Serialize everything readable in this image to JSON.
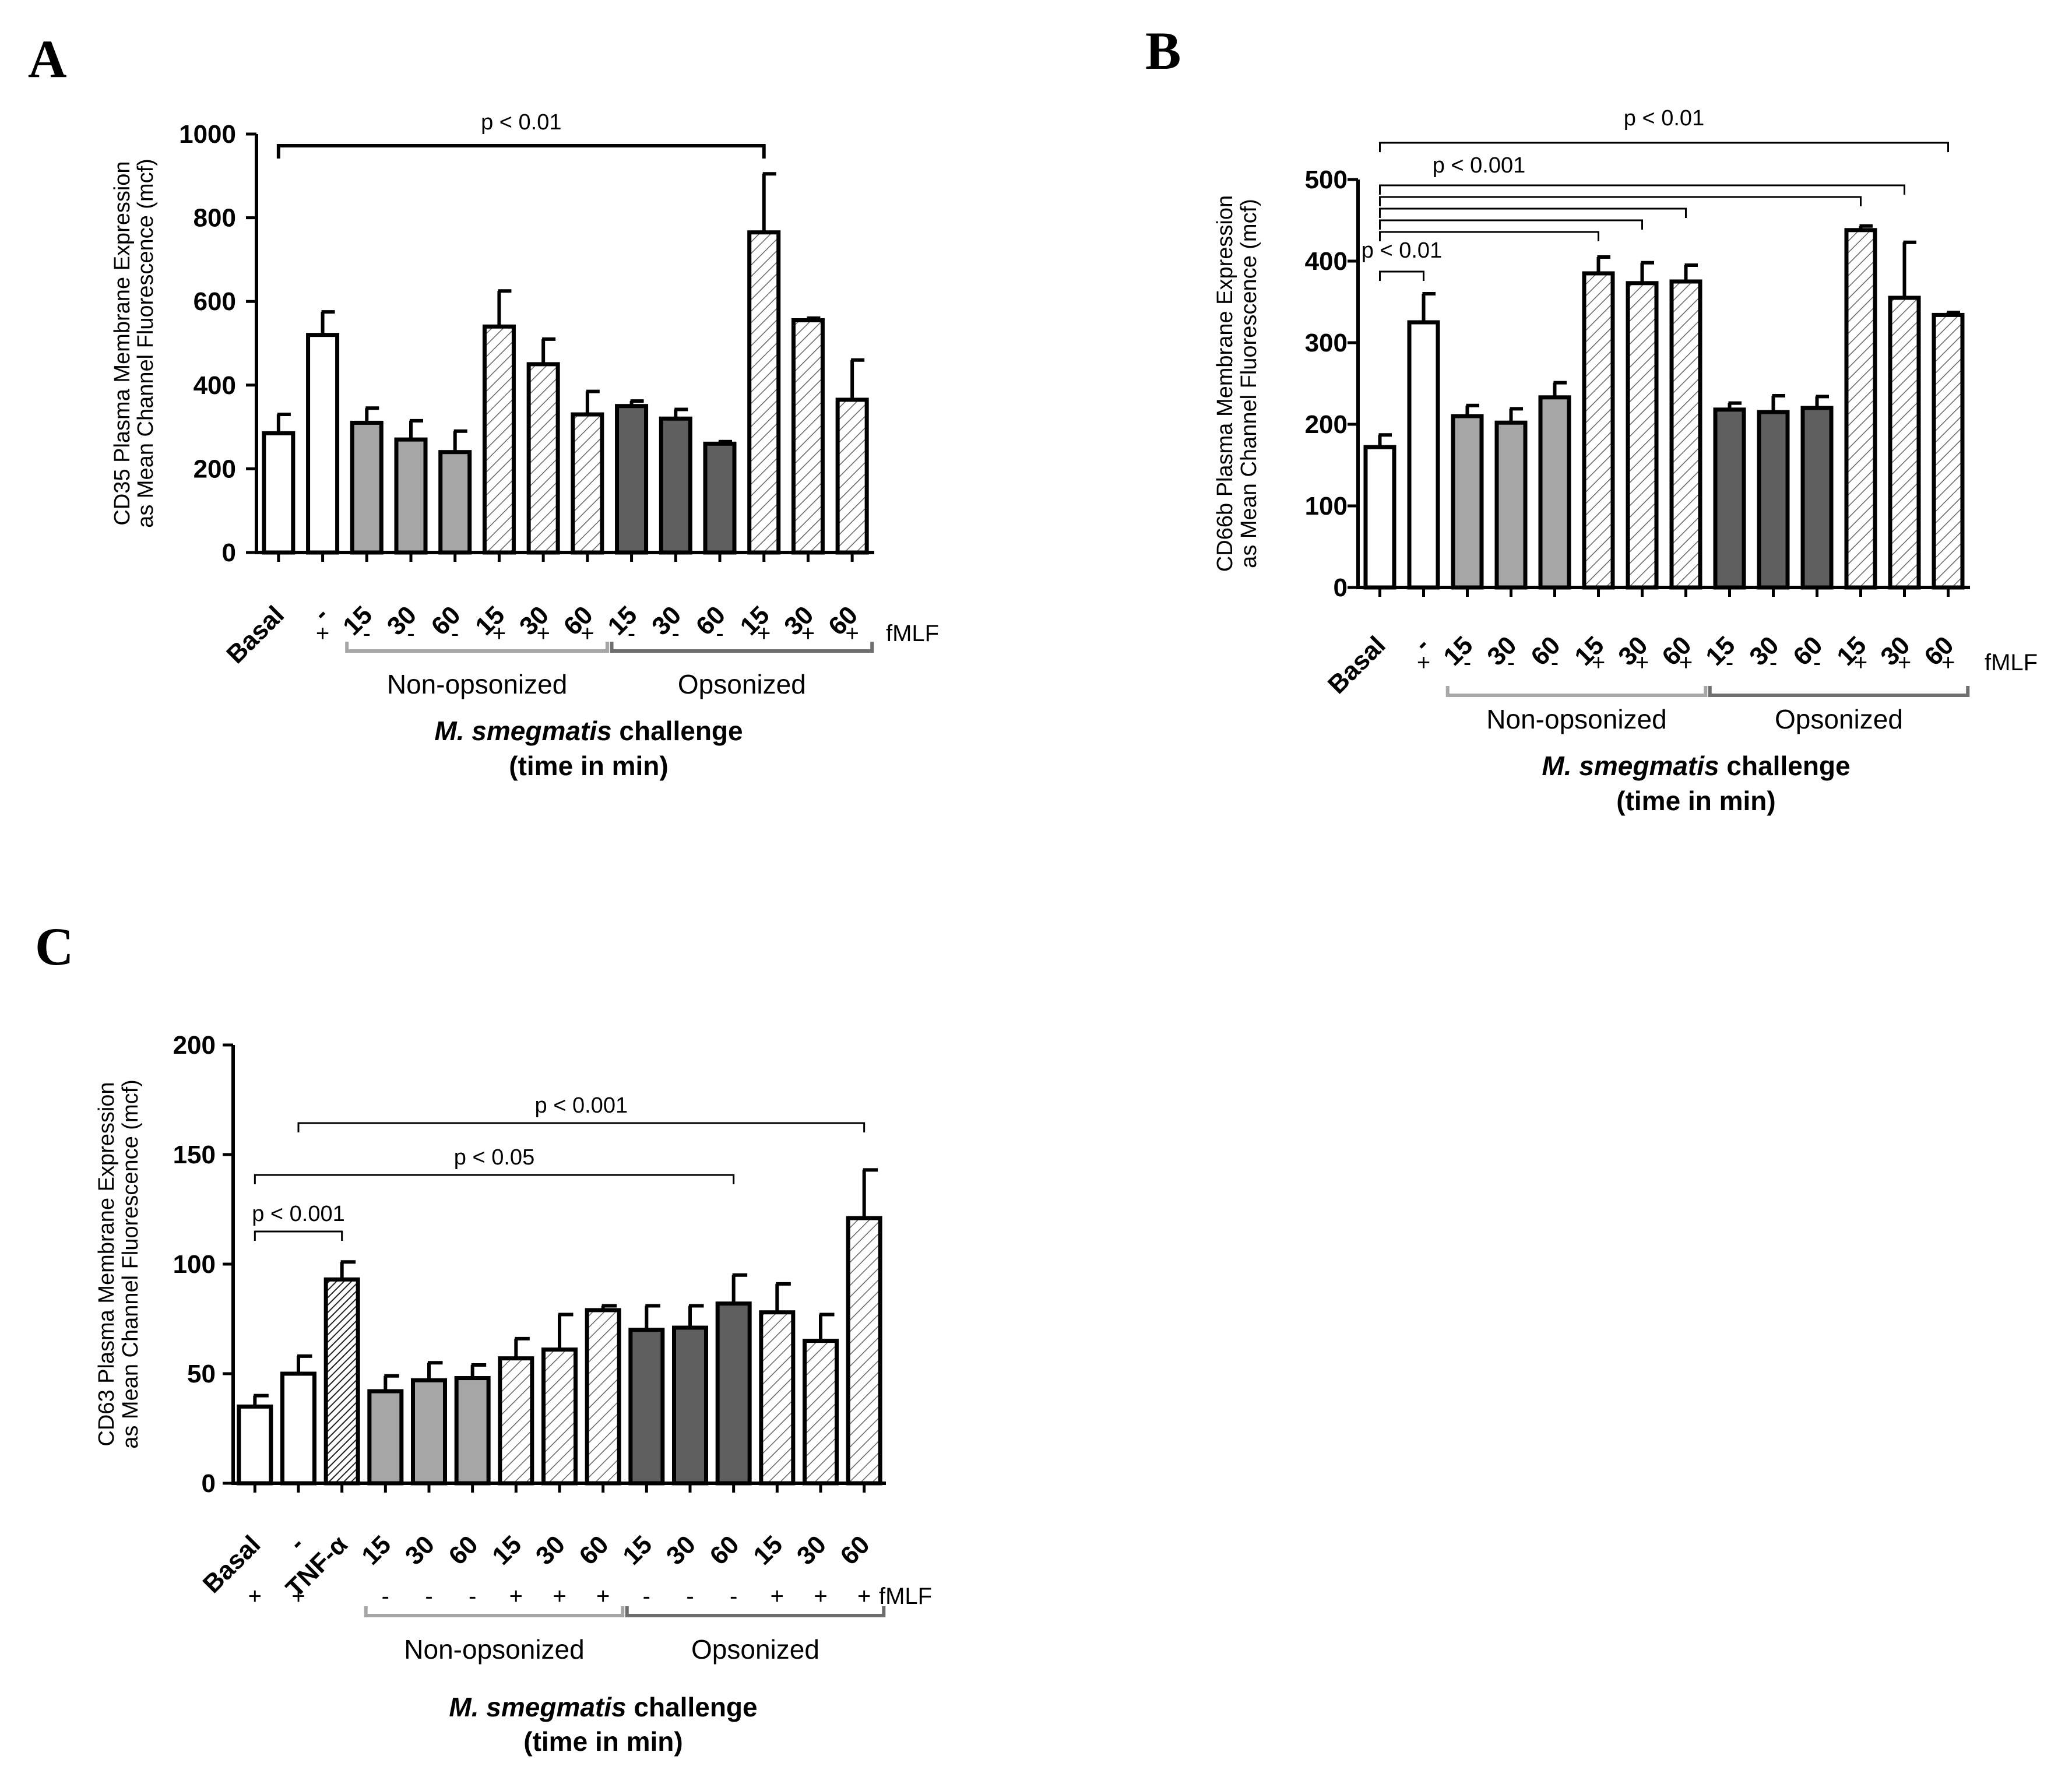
{
  "colors": {
    "open": "#ffffff",
    "light": "#a6a6a6",
    "dark": "#5f5f5f",
    "outline": "#000000",
    "bracket_non": "#a6a6a6",
    "bracket_ops": "#6e6e6e"
  },
  "chart_data": [
    {
      "panel": "A",
      "type": "bar",
      "ylabel_lines": [
        "CD35 Plasma Membrane Expression",
        "as Mean Channel Fluorescence (mcf)"
      ],
      "ylim": [
        0,
        1000
      ],
      "yticks": [
        0,
        200,
        400,
        600,
        800,
        1000
      ],
      "categories": [
        "Basal",
        "-",
        "15",
        "30",
        "60",
        "15",
        "30",
        "60",
        "15",
        "30",
        "60",
        "15",
        "30",
        "60"
      ],
      "values": [
        285,
        520,
        310,
        270,
        240,
        540,
        450,
        330,
        350,
        320,
        260,
        765,
        555,
        365
      ],
      "errors": [
        45,
        55,
        35,
        45,
        50,
        85,
        60,
        55,
        12,
        22,
        5,
        140,
        5,
        95
      ],
      "fills": [
        "open",
        "open",
        "light",
        "light",
        "light",
        "hatch",
        "hatch",
        "hatch",
        "dark",
        "dark",
        "dark",
        "hatch",
        "hatch",
        "hatch"
      ],
      "fmlf": [
        "",
        "+",
        "-",
        "-",
        "-",
        "+",
        "+",
        "+",
        "-",
        "-",
        "-",
        "+",
        "+",
        "+"
      ],
      "fmlf_label": "fMLF",
      "groups": [
        "Non-opsonized",
        "Opsonized"
      ],
      "xlabel_species": "M. smegmatis",
      "xlabel_rest": " challenge",
      "xlabel_line2": "(time in min)",
      "significance": [
        {
          "from": 0,
          "to": 11,
          "label": "p < 0.01"
        }
      ]
    },
    {
      "panel": "B",
      "type": "bar",
      "ylabel_lines": [
        "CD66b Plasma Membrane Expression",
        "as Mean  Channel Fluorescence (mcf)"
      ],
      "ylim": [
        0,
        500
      ],
      "yticks": [
        0,
        100,
        200,
        300,
        400,
        500
      ],
      "categories": [
        "Basal",
        "-",
        "15",
        "30",
        "60",
        "15",
        "30",
        "60",
        "15",
        "30",
        "60",
        "15",
        "30",
        "60"
      ],
      "values": [
        172,
        325,
        210,
        202,
        233,
        385,
        373,
        375,
        218,
        215,
        220,
        438,
        355,
        334
      ],
      "errors": [
        15,
        35,
        13,
        17,
        18,
        20,
        25,
        20,
        8,
        20,
        14,
        5,
        68,
        3
      ],
      "fills": [
        "open",
        "open",
        "light",
        "light",
        "light",
        "hatch",
        "hatch",
        "hatch",
        "dark",
        "dark",
        "dark",
        "hatch",
        "hatch",
        "hatch"
      ],
      "fmlf": [
        "",
        "+",
        "-",
        "-",
        "-",
        "+",
        "+",
        "+",
        "-",
        "-",
        "-",
        "+",
        "+",
        "+"
      ],
      "fmlf_label": "fMLF",
      "groups": [
        "Non-opsonized",
        "Opsonized"
      ],
      "xlabel_species": "M. smegmatis",
      "xlabel_rest": " challenge",
      "xlabel_line2": "(time in min)",
      "significance": [
        {
          "from": 0,
          "to": 13,
          "label": "p < 0.01"
        },
        {
          "from": 0,
          "to": 12,
          "label": "p < 0.001"
        },
        {
          "from": 0,
          "to": 11,
          "label": ""
        },
        {
          "from": 0,
          "to": 7,
          "label": ""
        },
        {
          "from": 0,
          "to": 6,
          "label": ""
        },
        {
          "from": 0,
          "to": 5,
          "label": ""
        },
        {
          "from": 0,
          "to": 1,
          "label": "p < 0.01"
        }
      ]
    },
    {
      "panel": "C",
      "type": "bar",
      "ylabel_lines": [
        "CD63 Plasma Membrane Expression",
        "as Mean Channel Fluorescence (mcf)"
      ],
      "ylim": [
        0,
        200
      ],
      "yticks": [
        0,
        50,
        100,
        150,
        200
      ],
      "categories": [
        "Basal",
        "-",
        "TNF-α",
        "15",
        "30",
        "60",
        "15",
        "30",
        "60",
        "15",
        "30",
        "60",
        "15",
        "30",
        "60"
      ],
      "values": [
        35,
        50,
        93,
        42,
        47,
        48,
        57,
        61,
        79,
        70,
        71,
        82,
        78,
        65,
        121
      ],
      "errors": [
        5,
        8,
        8,
        7,
        8,
        6,
        9,
        16,
        2,
        11,
        10,
        13,
        13,
        12,
        22
      ],
      "fills": [
        "open",
        "open",
        "densehatch",
        "light",
        "light",
        "light",
        "hatch",
        "hatch",
        "hatch",
        "dark",
        "dark",
        "dark",
        "hatch",
        "hatch",
        "hatch"
      ],
      "fmlf": [
        "+",
        "+",
        "",
        "-",
        "-",
        "-",
        "+",
        "+",
        "+",
        "-",
        "-",
        "-",
        "+",
        "+",
        "+"
      ],
      "fmlf_label": "fMLF",
      "groups": [
        "Non-opsonized",
        "Opsonized"
      ],
      "xlabel_species": "M. smegmatis",
      "xlabel_rest": " challenge",
      "xlabel_line2": "(time in min)",
      "significance": [
        {
          "from": 1,
          "to": 14,
          "label": "p < 0.001"
        },
        {
          "from": 0,
          "to": 11,
          "label": "p < 0.05"
        },
        {
          "from": 0,
          "to": 2,
          "label": "p < 0.001"
        }
      ]
    }
  ]
}
